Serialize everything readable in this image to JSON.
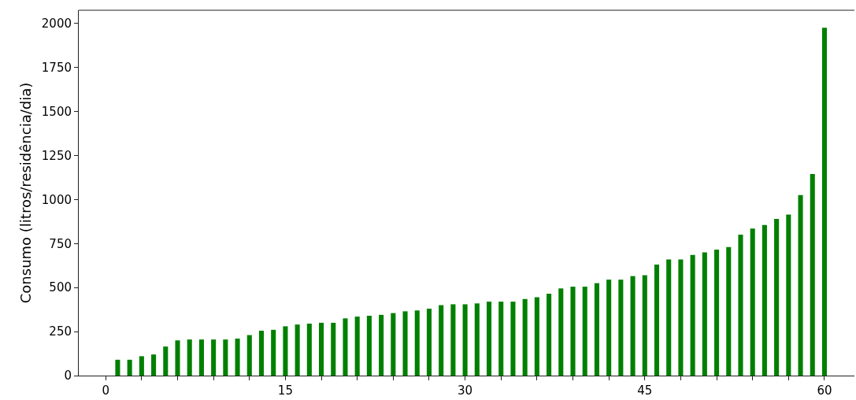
{
  "chart_data": {
    "type": "bar",
    "ylabel": "Consumo (litros/residência/dia)",
    "x": [
      1,
      2,
      3,
      4,
      5,
      6,
      7,
      8,
      9,
      10,
      11,
      12,
      13,
      14,
      15,
      16,
      17,
      18,
      19,
      20,
      21,
      22,
      23,
      24,
      25,
      26,
      27,
      28,
      29,
      30,
      31,
      32,
      33,
      34,
      35,
      36,
      37,
      38,
      39,
      40,
      41,
      42,
      43,
      44,
      45,
      46,
      47,
      48,
      49,
      50,
      51,
      52,
      53,
      54,
      55,
      56,
      57,
      58,
      59,
      60
    ],
    "values": [
      90,
      90,
      110,
      120,
      165,
      200,
      205,
      205,
      205,
      205,
      210,
      230,
      255,
      260,
      280,
      290,
      295,
      300,
      300,
      325,
      335,
      340,
      345,
      355,
      365,
      370,
      380,
      400,
      405,
      405,
      410,
      420,
      420,
      420,
      435,
      445,
      465,
      495,
      505,
      505,
      525,
      545,
      545,
      565,
      570,
      630,
      660,
      660,
      685,
      700,
      715,
      730,
      800,
      835,
      855,
      890,
      915,
      1025,
      1145,
      1975
    ],
    "color": "#008000",
    "xlim": [
      -2.25,
      62.5
    ],
    "ylim": [
      0,
      2075
    ],
    "xticks": [
      0,
      {
        "value": 3,
        "label": null
      },
      {
        "value": 6,
        "label": null
      },
      {
        "value": 9,
        "label": null
      },
      {
        "value": 12,
        "label": null
      },
      15,
      {
        "value": 18,
        "label": null
      },
      {
        "value": 21,
        "label": null
      },
      {
        "value": 24,
        "label": null
      },
      {
        "value": 27,
        "label": null
      },
      30,
      {
        "value": 33,
        "label": null
      },
      {
        "value": 36,
        "label": null
      },
      {
        "value": 39,
        "label": null
      },
      {
        "value": 42,
        "label": null
      },
      45,
      {
        "value": 48,
        "label": null
      },
      {
        "value": 51,
        "label": null
      },
      {
        "value": 54,
        "label": null
      },
      {
        "value": 57,
        "label": null
      },
      60
    ],
    "yticks": [
      0,
      250,
      500,
      750,
      1000,
      1250,
      1500,
      1750,
      2000
    ]
  }
}
